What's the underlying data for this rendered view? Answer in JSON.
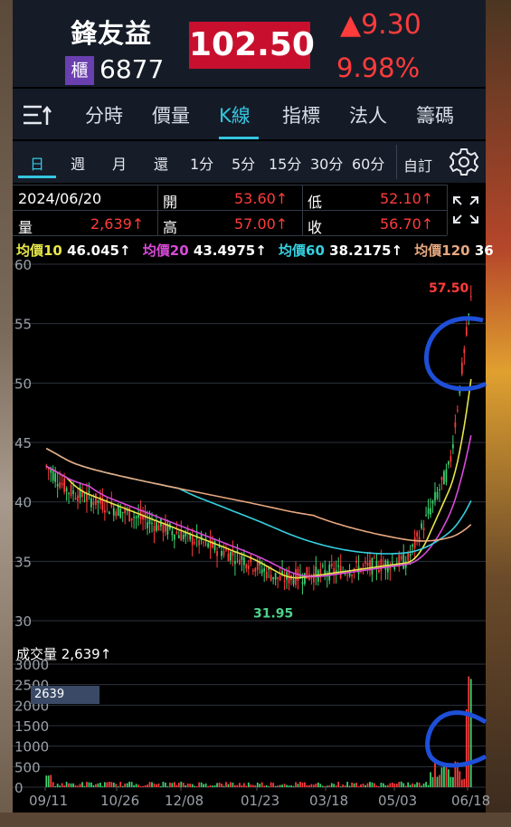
{
  "stock": {
    "name": "鋒友益",
    "badge": "櫃",
    "code": "6877",
    "price": "102.50",
    "change": "▲9.30",
    "change_pct": "9.98%"
  },
  "tabs": [
    "分時",
    "價量",
    "K線",
    "指標",
    "法人",
    "籌碼"
  ],
  "active_tab": "K線",
  "periods": [
    "日",
    "週",
    "月",
    "還",
    "1分",
    "5分",
    "15分",
    "30分",
    "60分"
  ],
  "active_period": "日",
  "custom_label": "自訂",
  "info": {
    "date": "2024/06/20",
    "open_label": "開",
    "open": "53.60↑",
    "low_label": "低",
    "low": "52.10↑",
    "vol_label": "量",
    "vol": "2,639↑",
    "high_label": "高",
    "high": "57.00↑",
    "close_label": "收",
    "close": "56.70↑"
  },
  "ma": [
    {
      "label": "均價10",
      "value": "46.045↑",
      "color": "#e6e64a"
    },
    {
      "label": "均價20",
      "value": "43.4975↑",
      "color": "#d84ad8"
    },
    {
      "label": "均價60",
      "value": "38.2175↑",
      "color": "#35d0e0"
    },
    {
      "label": "均價120",
      "value": "36",
      "color": "#e8a880"
    }
  ],
  "price_axis": [
    "60",
    "55",
    "50",
    "45",
    "40",
    "35",
    "30"
  ],
  "low_marker": "31.95",
  "high_marker": "57.50",
  "volume": {
    "title": "成交量 2,639↑",
    "marker": "2639",
    "axis": [
      "3000",
      "2500",
      "2000",
      "1500",
      "1000",
      "500",
      "0"
    ]
  },
  "dates": [
    "09/11",
    "10/26",
    "12/08",
    "01/23",
    "03/18",
    "05/03",
    "06/18"
  ],
  "colors": {
    "up": "#ff3b3b",
    "down": "#3bd16f",
    "accent": "#35c6e0"
  },
  "chart_data": {
    "type": "candlestick",
    "price_range": [
      30,
      60
    ],
    "volume_range": [
      0,
      3000
    ],
    "low_point": 31.95,
    "high_point": 57.5,
    "moving_averages": [
      {
        "name": "均價10",
        "last": 46.045
      },
      {
        "name": "均價20",
        "last": 43.4975
      },
      {
        "name": "均價60",
        "last": 38.2175
      },
      {
        "name": "均價120",
        "last": 36
      }
    ],
    "x_ticks": [
      "09/11",
      "10/26",
      "12/08",
      "01/23",
      "03/18",
      "05/03",
      "06/18"
    ]
  }
}
